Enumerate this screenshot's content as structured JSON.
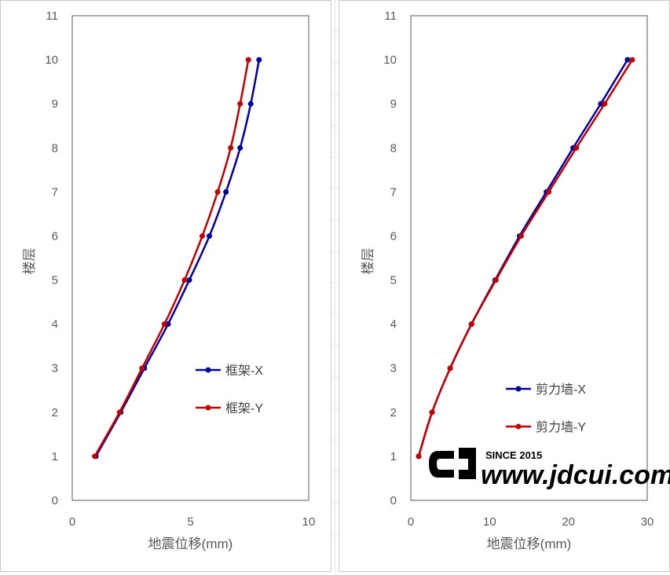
{
  "chart_data": [
    {
      "type": "line",
      "xlabel": "地震位移(mm)",
      "ylabel": "楼层",
      "xlim": [
        0,
        10
      ],
      "ylim": [
        0,
        11
      ],
      "x_ticks": [
        0,
        5,
        10
      ],
      "y_ticks": [
        0,
        1,
        2,
        3,
        4,
        5,
        6,
        7,
        8,
        9,
        10,
        11
      ],
      "grid": false,
      "legend_position": "right",
      "series": [
        {
          "name": "框架-X",
          "color": "#0000a0",
          "points": [
            {
              "x": 1.0,
              "y": 1
            },
            {
              "x": 2.05,
              "y": 2
            },
            {
              "x": 3.05,
              "y": 3
            },
            {
              "x": 4.05,
              "y": 4
            },
            {
              "x": 4.95,
              "y": 5
            },
            {
              "x": 5.8,
              "y": 6
            },
            {
              "x": 6.5,
              "y": 7
            },
            {
              "x": 7.1,
              "y": 8
            },
            {
              "x": 7.55,
              "y": 9
            },
            {
              "x": 7.9,
              "y": 10
            }
          ]
        },
        {
          "name": "框架-Y",
          "color": "#c00000",
          "points": [
            {
              "x": 0.95,
              "y": 1
            },
            {
              "x": 2.0,
              "y": 2
            },
            {
              "x": 2.95,
              "y": 3
            },
            {
              "x": 3.9,
              "y": 4
            },
            {
              "x": 4.75,
              "y": 5
            },
            {
              "x": 5.5,
              "y": 6
            },
            {
              "x": 6.15,
              "y": 7
            },
            {
              "x": 6.7,
              "y": 8
            },
            {
              "x": 7.1,
              "y": 9
            },
            {
              "x": 7.45,
              "y": 10
            }
          ]
        }
      ]
    },
    {
      "type": "line",
      "xlabel": "地震位移(mm)",
      "ylabel": "楼层",
      "xlim": [
        0,
        30
      ],
      "ylim": [
        0,
        11
      ],
      "x_ticks": [
        0,
        10,
        20,
        30
      ],
      "y_ticks": [
        0,
        1,
        2,
        3,
        4,
        5,
        6,
        7,
        8,
        9,
        10,
        11
      ],
      "grid": false,
      "legend_position": "right",
      "series": [
        {
          "name": "剪力墙-X",
          "color": "#0000a0",
          "points": [
            {
              "x": 1.0,
              "y": 1
            },
            {
              "x": 2.7,
              "y": 2
            },
            {
              "x": 5.0,
              "y": 3
            },
            {
              "x": 7.7,
              "y": 4
            },
            {
              "x": 10.7,
              "y": 5
            },
            {
              "x": 13.8,
              "y": 6
            },
            {
              "x": 17.2,
              "y": 7
            },
            {
              "x": 20.6,
              "y": 8
            },
            {
              "x": 24.1,
              "y": 9
            },
            {
              "x": 27.5,
              "y": 10
            }
          ]
        },
        {
          "name": "剪力墙-Y",
          "color": "#c00000",
          "points": [
            {
              "x": 1.0,
              "y": 1
            },
            {
              "x": 2.7,
              "y": 2
            },
            {
              "x": 5.0,
              "y": 3
            },
            {
              "x": 7.7,
              "y": 4
            },
            {
              "x": 10.8,
              "y": 5
            },
            {
              "x": 14.0,
              "y": 6
            },
            {
              "x": 17.5,
              "y": 7
            },
            {
              "x": 21.0,
              "y": 8
            },
            {
              "x": 24.6,
              "y": 9
            },
            {
              "x": 28.1,
              "y": 10
            }
          ]
        }
      ]
    }
  ],
  "watermark": {
    "since": "SINCE 2015",
    "url": "www.jdcui.com"
  }
}
